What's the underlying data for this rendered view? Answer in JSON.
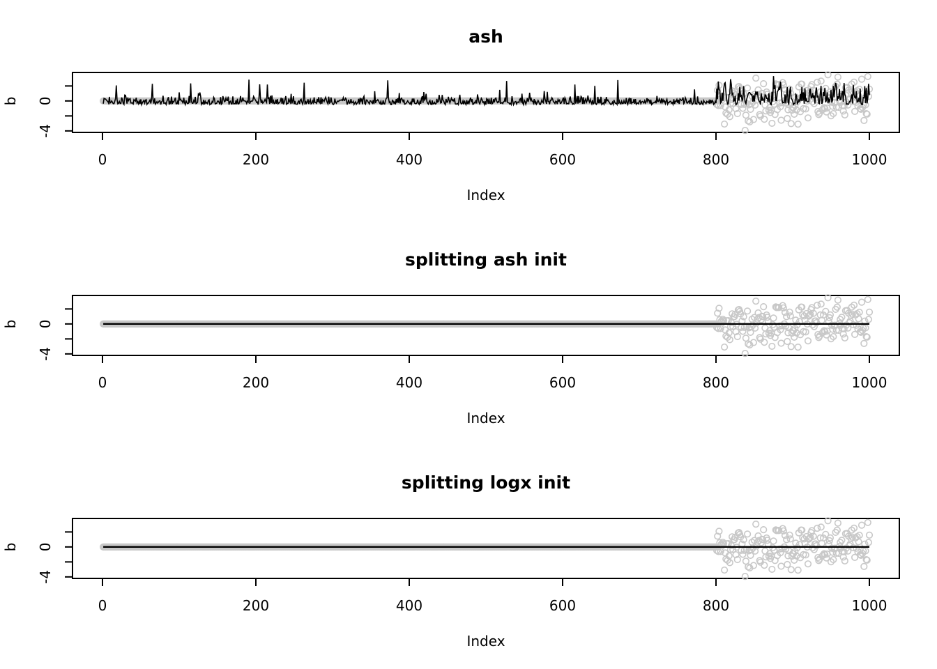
{
  "chart_data": [
    {
      "type": "scatter",
      "title": "ash",
      "xlabel": "Index",
      "ylabel": "b",
      "xlim": [
        0,
        1000
      ],
      "ylim": [
        -4.2,
        3.8
      ],
      "x_ticks": [
        "0",
        "200",
        "400",
        "600",
        "800",
        "1000"
      ],
      "y_ticks": [
        "-4",
        "0"
      ],
      "grid": false,
      "series": [
        {
          "role": "true-effects-points",
          "style": "open-circles",
          "color": "#c8c8c8",
          "nonzero_from_index": 801,
          "nonzero_to_index": 1000,
          "nonzero_range": [
            -4.1,
            3.5
          ],
          "zero_before_index": 800
        },
        {
          "role": "estimate-line",
          "style": "line",
          "color": "#000000",
          "baseline": -0.5,
          "peak_range": [
            0,
            3.5
          ]
        }
      ]
    },
    {
      "type": "scatter",
      "title": "splitting ash init",
      "xlabel": "Index",
      "ylabel": "b",
      "xlim": [
        0,
        1000
      ],
      "ylim": [
        -4.2,
        3.8
      ],
      "x_ticks": [
        "0",
        "200",
        "400",
        "600",
        "800",
        "1000"
      ],
      "y_ticks": [
        "-4",
        "0"
      ],
      "grid": false,
      "series": [
        {
          "role": "true-effects-points",
          "style": "open-circles",
          "color": "#c8c8c8",
          "nonzero_from_index": 801,
          "nonzero_to_index": 1000,
          "nonzero_range": [
            -4.1,
            3.5
          ],
          "zero_before_index": 800
        },
        {
          "role": "estimate-line",
          "style": "line",
          "color": "#000000",
          "value": 0
        }
      ]
    },
    {
      "type": "scatter",
      "title": "splitting logx init",
      "xlabel": "Index",
      "ylabel": "b",
      "xlim": [
        0,
        1000
      ],
      "ylim": [
        -4.2,
        3.8
      ],
      "x_ticks": [
        "0",
        "200",
        "400",
        "600",
        "800",
        "1000"
      ],
      "y_ticks": [
        "-4",
        "0"
      ],
      "grid": false,
      "series": [
        {
          "role": "true-effects-points",
          "style": "open-circles",
          "color": "#c8c8c8",
          "nonzero_from_index": 801,
          "nonzero_to_index": 1000,
          "nonzero_range": [
            -4.1,
            3.5
          ],
          "zero_before_index": 800
        },
        {
          "role": "estimate-line",
          "style": "line",
          "color": "#000000",
          "value": 0
        }
      ]
    }
  ]
}
